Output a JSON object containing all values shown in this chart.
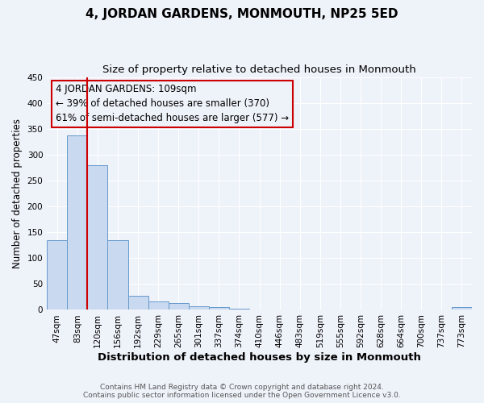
{
  "title": "4, JORDAN GARDENS, MONMOUTH, NP25 5ED",
  "subtitle": "Size of property relative to detached houses in Monmouth",
  "xlabel": "Distribution of detached houses by size in Monmouth",
  "ylabel": "Number of detached properties",
  "footer_line1": "Contains HM Land Registry data © Crown copyright and database right 2024.",
  "footer_line2": "Contains public sector information licensed under the Open Government Licence v3.0.",
  "bin_labels": [
    "47sqm",
    "83sqm",
    "120sqm",
    "156sqm",
    "192sqm",
    "229sqm",
    "265sqm",
    "301sqm",
    "337sqm",
    "374sqm",
    "410sqm",
    "446sqm",
    "483sqm",
    "519sqm",
    "555sqm",
    "592sqm",
    "628sqm",
    "664sqm",
    "700sqm",
    "737sqm",
    "773sqm"
  ],
  "bar_heights": [
    134,
    337,
    280,
    134,
    27,
    17,
    13,
    7,
    6,
    3,
    1,
    0,
    0,
    0,
    0,
    0,
    0,
    0,
    0,
    0,
    5
  ],
  "bar_color": "#c9d9ef",
  "bar_edge_color": "#6699cc",
  "vline_color": "#cc0000",
  "annotation_text": "4 JORDAN GARDENS: 109sqm\n← 39% of detached houses are smaller (370)\n61% of semi-detached houses are larger (577) →",
  "annotation_box_edge_color": "#cc0000",
  "ylim": [
    0,
    450
  ],
  "yticks": [
    0,
    50,
    100,
    150,
    200,
    250,
    300,
    350,
    400,
    450
  ],
  "bg_color": "#eef2f9",
  "grid_color": "#ffffff",
  "title_fontsize": 11,
  "subtitle_fontsize": 9.5,
  "xlabel_fontsize": 9.5,
  "ylabel_fontsize": 8.5,
  "tick_fontsize": 7.5,
  "annotation_fontsize": 8.5,
  "footer_fontsize": 6.5,
  "footer_color": "#555555"
}
